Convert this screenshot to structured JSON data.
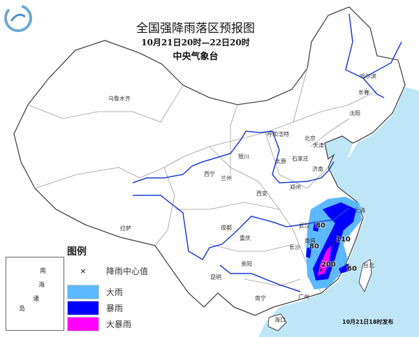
{
  "header": {
    "title": "全国强降雨落区预报图",
    "period": "10月21日20时—22日20时",
    "issuer": "中央气象台"
  },
  "cities": [
    {
      "name": "乌鲁木齐"
    },
    {
      "name": "拉萨"
    },
    {
      "name": "西宁"
    },
    {
      "name": "兰州"
    },
    {
      "name": "银川"
    },
    {
      "name": "呼和浩特"
    },
    {
      "name": "太原"
    },
    {
      "name": "石家庄"
    },
    {
      "name": "北京"
    },
    {
      "name": "天津"
    },
    {
      "name": "济南"
    },
    {
      "name": "郑州"
    },
    {
      "name": "西安"
    },
    {
      "name": "成都"
    },
    {
      "name": "重庆"
    },
    {
      "name": "贵阳"
    },
    {
      "name": "昆明"
    },
    {
      "name": "南宁"
    },
    {
      "name": "海口"
    },
    {
      "name": "长沙"
    },
    {
      "name": "武汉"
    },
    {
      "name": "南昌"
    },
    {
      "name": "哈尔滨"
    },
    {
      "name": "长春"
    },
    {
      "name": "沈阳"
    },
    {
      "name": "台北"
    },
    {
      "name": "广州"
    },
    {
      "name": "上海"
    }
  ],
  "rain_center_values": [
    "80",
    "110",
    "80",
    "200",
    "60"
  ],
  "legend": {
    "title": "图例",
    "items": [
      {
        "label": "降雨中心值",
        "symbol": "×"
      },
      {
        "label": "大雨",
        "color": "#5cb8ff"
      },
      {
        "label": "暴雨",
        "color": "#0000ff"
      },
      {
        "label": "大暴雨",
        "color": "#ff00ff"
      }
    ],
    "inset_labels": [
      "南",
      "海",
      "诸",
      "岛"
    ]
  },
  "footer": "10月21日18时发布",
  "colors": {
    "sea": "#bfe6f7",
    "border": "#555555",
    "river": "#1a3cd8",
    "heavy_rain": "#5cb8ff",
    "rainstorm": "#0000ff",
    "heavy_rainstorm": "#ff00ff"
  }
}
